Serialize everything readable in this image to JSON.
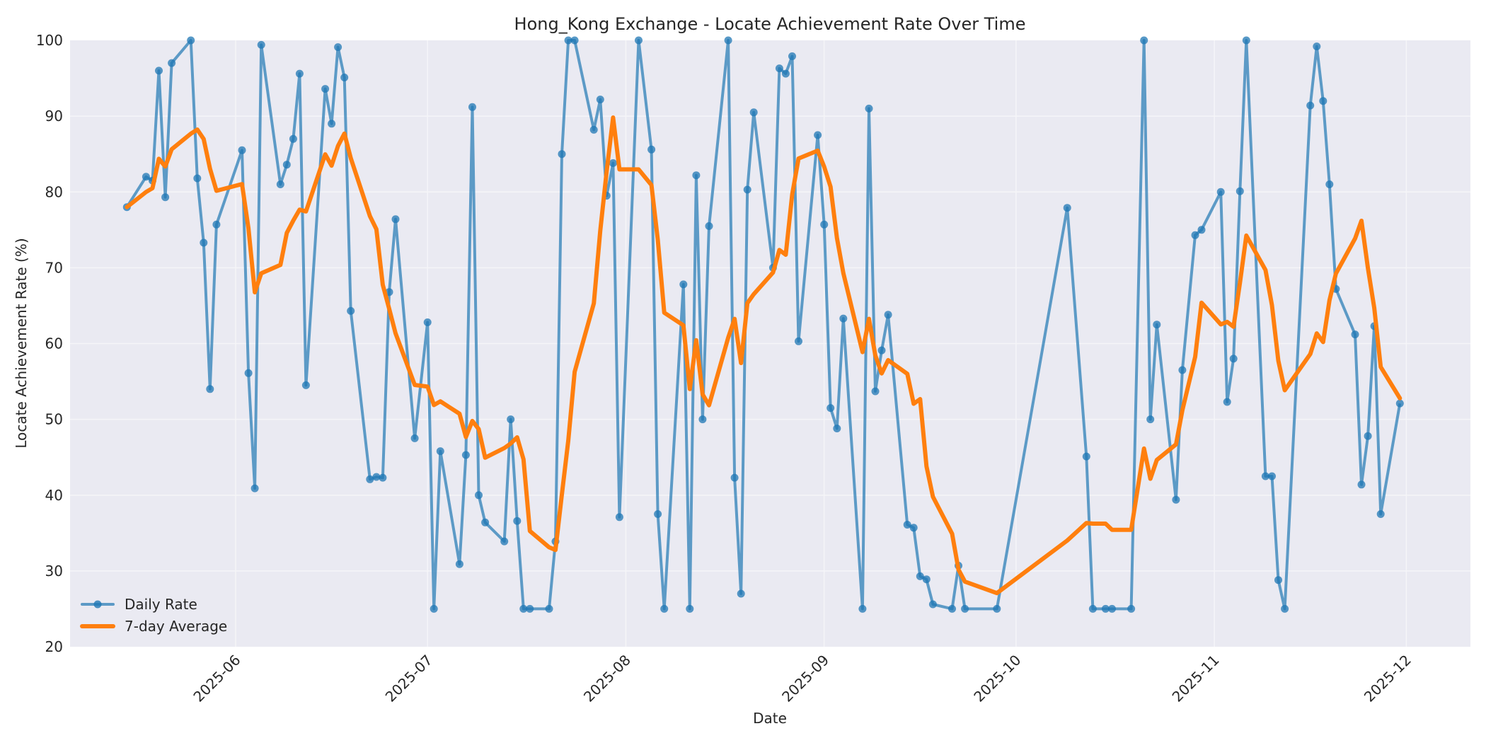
{
  "chart_data": {
    "type": "line",
    "title": "Hong_Kong Exchange - Locate Achievement Rate Over Time",
    "xlabel": "Date",
    "ylabel": "Locate Achievement Rate (%)",
    "ylim": [
      20,
      100
    ],
    "yticks": [
      20,
      30,
      40,
      50,
      60,
      70,
      80,
      90,
      100
    ],
    "xlim": [
      "2025-05-01",
      "2025-12-04"
    ],
    "xticks": [
      "2025-06",
      "2025-07",
      "2025-08",
      "2025-09",
      "2025-10",
      "2025-11",
      "2025-12"
    ],
    "grid": true,
    "legend_position": "lower left",
    "colors": {
      "daily": "#1f77b4",
      "average": "#ff7f0e",
      "plot_bg": "#eaeaf2",
      "grid": "#f5f5f8"
    },
    "series": [
      {
        "name": "Daily Rate",
        "style": "line-with-markers",
        "points": [
          [
            "2025-05-15",
            78.0
          ],
          [
            "2025-05-18",
            82.0
          ],
          [
            "2025-05-19",
            81.5
          ],
          [
            "2025-05-20",
            96.0
          ],
          [
            "2025-05-21",
            79.3
          ],
          [
            "2025-05-22",
            97.0
          ],
          [
            "2025-05-25",
            100.0
          ],
          [
            "2025-05-26",
            81.8
          ],
          [
            "2025-05-27",
            73.3
          ],
          [
            "2025-05-28",
            54.0
          ],
          [
            "2025-05-29",
            75.7
          ],
          [
            "2025-06-02",
            85.5
          ],
          [
            "2025-06-03",
            56.1
          ],
          [
            "2025-06-04",
            40.9
          ],
          [
            "2025-06-05",
            99.4
          ],
          [
            "2025-06-08",
            81.0
          ],
          [
            "2025-06-09",
            83.6
          ],
          [
            "2025-06-10",
            87.0
          ],
          [
            "2025-06-11",
            95.6
          ],
          [
            "2025-06-12",
            54.5
          ],
          [
            "2025-06-15",
            93.6
          ],
          [
            "2025-06-16",
            89.0
          ],
          [
            "2025-06-17",
            99.1
          ],
          [
            "2025-06-18",
            95.1
          ],
          [
            "2025-06-19",
            64.3
          ],
          [
            "2025-06-22",
            42.1
          ],
          [
            "2025-06-23",
            42.4
          ],
          [
            "2025-06-24",
            42.3
          ],
          [
            "2025-06-25",
            66.8
          ],
          [
            "2025-06-26",
            76.4
          ],
          [
            "2025-06-29",
            47.5
          ],
          [
            "2025-07-01",
            62.8
          ],
          [
            "2025-07-02",
            25.0
          ],
          [
            "2025-07-03",
            45.8
          ],
          [
            "2025-07-06",
            30.9
          ],
          [
            "2025-07-07",
            45.3
          ],
          [
            "2025-07-08",
            91.2
          ],
          [
            "2025-07-09",
            40.0
          ],
          [
            "2025-07-10",
            36.4
          ],
          [
            "2025-07-13",
            33.9
          ],
          [
            "2025-07-14",
            50.0
          ],
          [
            "2025-07-15",
            36.6
          ],
          [
            "2025-07-16",
            25.0
          ],
          [
            "2025-07-17",
            25.0
          ],
          [
            "2025-07-20",
            25.0
          ],
          [
            "2025-07-21",
            33.9
          ],
          [
            "2025-07-22",
            85.0
          ],
          [
            "2025-07-23",
            100.0
          ],
          [
            "2025-07-24",
            100.0
          ],
          [
            "2025-07-27",
            88.2
          ],
          [
            "2025-07-28",
            92.2
          ],
          [
            "2025-07-29",
            79.5
          ],
          [
            "2025-07-30",
            83.8
          ],
          [
            "2025-07-31",
            37.1
          ],
          [
            "2025-08-03",
            100.0
          ],
          [
            "2025-08-05",
            85.6
          ],
          [
            "2025-08-06",
            37.5
          ],
          [
            "2025-08-07",
            25.0
          ],
          [
            "2025-08-10",
            67.8
          ],
          [
            "2025-08-11",
            25.0
          ],
          [
            "2025-08-12",
            82.2
          ],
          [
            "2025-08-13",
            50.0
          ],
          [
            "2025-08-14",
            75.5
          ],
          [
            "2025-08-17",
            100.0
          ],
          [
            "2025-08-18",
            42.3
          ],
          [
            "2025-08-19",
            27.0
          ],
          [
            "2025-08-20",
            80.3
          ],
          [
            "2025-08-21",
            90.5
          ],
          [
            "2025-08-24",
            70.0
          ],
          [
            "2025-08-25",
            96.3
          ],
          [
            "2025-08-26",
            95.6
          ],
          [
            "2025-08-27",
            97.9
          ],
          [
            "2025-08-28",
            60.3
          ],
          [
            "2025-08-31",
            87.5
          ],
          [
            "2025-09-01",
            75.7
          ],
          [
            "2025-09-02",
            51.5
          ],
          [
            "2025-09-03",
            48.8
          ],
          [
            "2025-09-04",
            63.3
          ],
          [
            "2025-09-07",
            25.0
          ],
          [
            "2025-09-08",
            91.0
          ],
          [
            "2025-09-09",
            53.7
          ],
          [
            "2025-09-10",
            59.1
          ],
          [
            "2025-09-11",
            63.8
          ],
          [
            "2025-09-14",
            36.1
          ],
          [
            "2025-09-15",
            35.7
          ],
          [
            "2025-09-16",
            29.3
          ],
          [
            "2025-09-17",
            28.9
          ],
          [
            "2025-09-18",
            25.6
          ],
          [
            "2025-09-21",
            25.0
          ],
          [
            "2025-09-22",
            30.7
          ],
          [
            "2025-09-23",
            25.0
          ],
          [
            "2025-09-28",
            25.0
          ],
          [
            "2025-10-09",
            77.9
          ],
          [
            "2025-10-12",
            45.1
          ],
          [
            "2025-10-13",
            25.0
          ],
          [
            "2025-10-15",
            25.0
          ],
          [
            "2025-10-16",
            25.0
          ],
          [
            "2025-10-19",
            25.0
          ],
          [
            "2025-10-21",
            100.0
          ],
          [
            "2025-10-22",
            50.0
          ],
          [
            "2025-10-23",
            62.5
          ],
          [
            "2025-10-26",
            39.4
          ],
          [
            "2025-10-27",
            56.5
          ],
          [
            "2025-10-29",
            74.3
          ],
          [
            "2025-10-30",
            75.0
          ],
          [
            "2025-11-02",
            80.0
          ],
          [
            "2025-11-03",
            52.3
          ],
          [
            "2025-11-04",
            58.0
          ],
          [
            "2025-11-05",
            80.1
          ],
          [
            "2025-11-06",
            100.0
          ],
          [
            "2025-11-09",
            42.5
          ],
          [
            "2025-11-10",
            42.5
          ],
          [
            "2025-11-11",
            28.8
          ],
          [
            "2025-11-12",
            25.0
          ],
          [
            "2025-11-16",
            91.4
          ],
          [
            "2025-11-17",
            99.2
          ],
          [
            "2025-11-18",
            92.0
          ],
          [
            "2025-11-19",
            81.0
          ],
          [
            "2025-11-20",
            67.2
          ],
          [
            "2025-11-23",
            61.2
          ],
          [
            "2025-11-24",
            41.4
          ],
          [
            "2025-11-25",
            47.8
          ],
          [
            "2025-11-26",
            62.3
          ],
          [
            "2025-11-27",
            37.5
          ],
          [
            "2025-11-30",
            52.1
          ]
        ]
      },
      {
        "name": "7-day Average",
        "style": "thick-line",
        "method": "rolling mean of last 7 observations (min_periods=1)"
      }
    ]
  },
  "legend": {
    "items": [
      {
        "label": "Daily Rate"
      },
      {
        "label": "7-day Average"
      }
    ]
  }
}
